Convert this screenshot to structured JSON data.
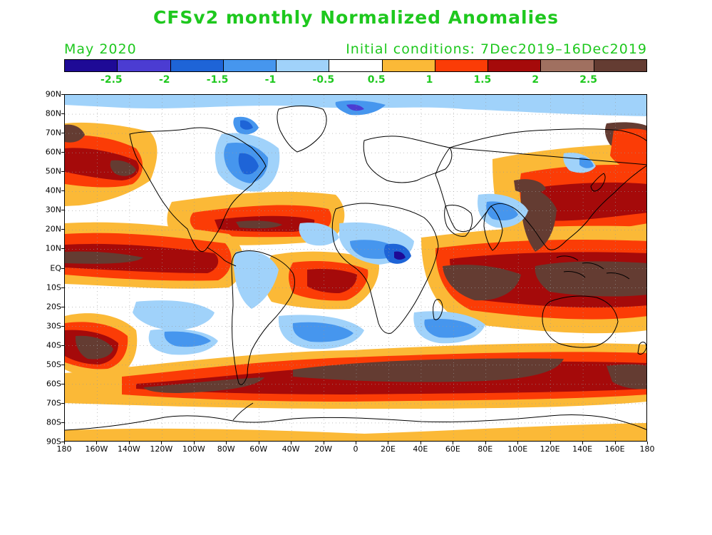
{
  "title": "CFSv2 monthly Normalized Anomalies",
  "valid_month": "May 2020",
  "initial_conditions": "Initial conditions: 7Dec2019–16Dec2019",
  "colors": {
    "text_green": "#1ec81e",
    "land_outline": "#000000",
    "grid": "#9a9a9a"
  },
  "colorbar": {
    "colors": [
      "#1e0a96",
      "#4b3cd2",
      "#1e64d7",
      "#4696ee",
      "#a0d2fa",
      "#ffffff",
      "#fbb937",
      "#fb3c06",
      "#a50a0a",
      "#a07060",
      "#643c32"
    ],
    "labels": [
      "-2.5",
      "-2",
      "-1.5",
      "-1",
      "-0.5",
      "0.5",
      "1",
      "1.5",
      "2",
      "2.5"
    ]
  },
  "map": {
    "lat_labels": [
      "90N",
      "80N",
      "70N",
      "60N",
      "50N",
      "40N",
      "30N",
      "20N",
      "10N",
      "EQ",
      "10S",
      "20S",
      "30S",
      "40S",
      "50S",
      "60S",
      "70S",
      "80S",
      "90S"
    ],
    "lon_labels": [
      "180",
      "160W",
      "140W",
      "120W",
      "100W",
      "80W",
      "60W",
      "40W",
      "20W",
      "0",
      "20E",
      "40E",
      "60E",
      "80E",
      "100E",
      "120E",
      "140E",
      "160E",
      "180"
    ],
    "anomaly_regions": [
      {
        "name": "arctic-cool-band",
        "value": -0.7
      },
      {
        "name": "greenland-cool",
        "value": -1.2
      },
      {
        "name": "north-america-cool",
        "value": -1.3
      },
      {
        "name": "tropical-pacific-warm",
        "value": 1.8
      },
      {
        "name": "southern-ocean-warm",
        "value": 2.7
      },
      {
        "name": "indian-ocean-warm",
        "value": 2.4
      },
      {
        "name": "maritime-continent-warm",
        "value": 2.2
      },
      {
        "name": "south-pacific-warm",
        "value": 2.3
      },
      {
        "name": "south-atlantic-cool",
        "value": -1.0
      },
      {
        "name": "south-indian-cool",
        "value": -1.1
      },
      {
        "name": "central-africa-cool",
        "value": -1.7
      },
      {
        "name": "north-pacific-warm",
        "value": 2.1
      },
      {
        "name": "antarctic-margin-warm",
        "value": 0.8
      }
    ]
  }
}
